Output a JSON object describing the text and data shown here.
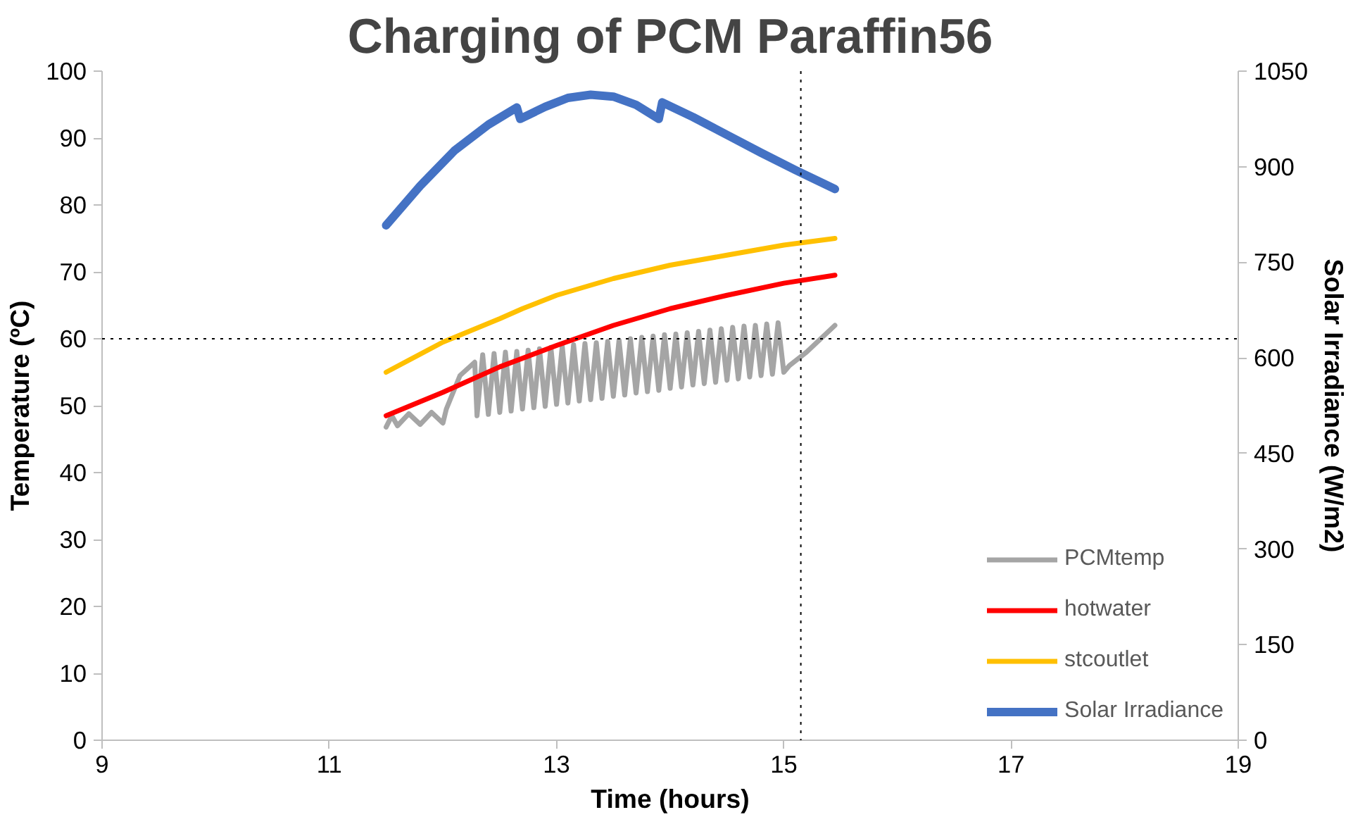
{
  "chart_data": {
    "type": "line",
    "title": "Charging of PCM Paraffin56",
    "xlabel": "Time (hours)",
    "ylabel": "Temperature (ºC)",
    "y2label": "Solar Irradiance (W/m2)",
    "xlim": [
      9,
      19
    ],
    "xticks": [
      9,
      11,
      13,
      15,
      17,
      19
    ],
    "ylim": [
      0,
      100
    ],
    "yticks": [
      0,
      10,
      20,
      30,
      40,
      50,
      60,
      70,
      80,
      90,
      100
    ],
    "y2lim": [
      0,
      1050
    ],
    "y2ticks": [
      0,
      150,
      300,
      450,
      600,
      750,
      900,
      1050
    ],
    "grid": false,
    "legend": "bottom right",
    "marker": "none",
    "line_style": "solid",
    "ref_lines": [
      {
        "axis": "y",
        "value": 60,
        "label": null,
        "color": "#000000",
        "line_style": "dotted"
      },
      {
        "axis": "x",
        "value": 15.15,
        "label": null,
        "color": "#000000",
        "line_style": "dotted"
      }
    ],
    "series": [
      {
        "name": "PCMtemp",
        "color": "#a5a5a5",
        "x": [
          11.5,
          11.55,
          11.6,
          11.7,
          11.8,
          11.9,
          12.0,
          12.03,
          12.15,
          12.28,
          12.3,
          12.35,
          12.4,
          12.45,
          12.5,
          12.55,
          12.6,
          12.65,
          12.7,
          12.75,
          12.8,
          12.85,
          12.9,
          12.95,
          13.0,
          13.05,
          13.1,
          13.15,
          13.2,
          13.25,
          13.3,
          13.35,
          13.4,
          13.45,
          13.5,
          13.55,
          13.6,
          13.65,
          13.7,
          13.75,
          13.8,
          13.85,
          13.9,
          13.95,
          14.0,
          14.05,
          14.1,
          14.15,
          14.2,
          14.25,
          14.3,
          14.35,
          14.4,
          14.45,
          14.5,
          14.55,
          14.6,
          14.65,
          14.7,
          14.75,
          14.8,
          14.85,
          14.9,
          14.95,
          15.0,
          15.05,
          15.2,
          15.45
        ],
        "values": [
          46.8,
          48.5,
          47.0,
          48.8,
          47.2,
          49.0,
          47.4,
          49.5,
          54.5,
          56.5,
          48.5,
          57.6,
          48.7,
          57.8,
          49.0,
          58.0,
          49.2,
          58.1,
          49.5,
          58.3,
          49.7,
          58.5,
          49.9,
          58.7,
          50.2,
          58.9,
          50.4,
          59.1,
          50.7,
          59.3,
          50.9,
          59.4,
          51.1,
          59.6,
          51.4,
          59.8,
          51.6,
          60.0,
          51.9,
          60.2,
          52.1,
          60.4,
          52.3,
          60.6,
          52.6,
          60.7,
          52.8,
          60.9,
          53.1,
          61.1,
          53.3,
          61.3,
          53.5,
          61.5,
          53.8,
          61.7,
          54.0,
          61.9,
          54.3,
          62.0,
          54.5,
          62.2,
          54.7,
          62.4,
          55.0,
          56.0,
          58.0,
          62.0
        ]
      },
      {
        "name": "hotwater",
        "color": "#ff0000",
        "x": [
          11.5,
          12.0,
          12.5,
          13.0,
          13.5,
          14.0,
          14.5,
          15.0,
          15.45
        ],
        "values": [
          48.5,
          52.0,
          55.8,
          59.0,
          62.0,
          64.5,
          66.5,
          68.3,
          69.5
        ]
      },
      {
        "name": "stcoutlet",
        "color": "#ffc000",
        "x": [
          11.5,
          12.0,
          12.5,
          12.7,
          13.0,
          13.5,
          14.0,
          14.5,
          15.0,
          15.45
        ],
        "values": [
          55.0,
          59.5,
          63.0,
          64.5,
          66.5,
          69.0,
          71.0,
          72.5,
          74.0,
          75.0
        ]
      },
      {
        "name": "Solar Irradiance",
        "color": "#4472c4",
        "axis": "y2",
        "x": [
          11.5,
          11.8,
          12.1,
          12.4,
          12.65,
          12.68,
          12.9,
          13.1,
          13.3,
          13.5,
          13.7,
          13.9,
          13.93,
          14.2,
          14.5,
          14.8,
          15.1,
          15.45
        ],
        "values": [
          808,
          870,
          925,
          966,
          993,
          975,
          994,
          1008,
          1013,
          1010,
          997,
          975,
          1001,
          978,
          950,
          922,
          895,
          865
        ]
      }
    ]
  }
}
